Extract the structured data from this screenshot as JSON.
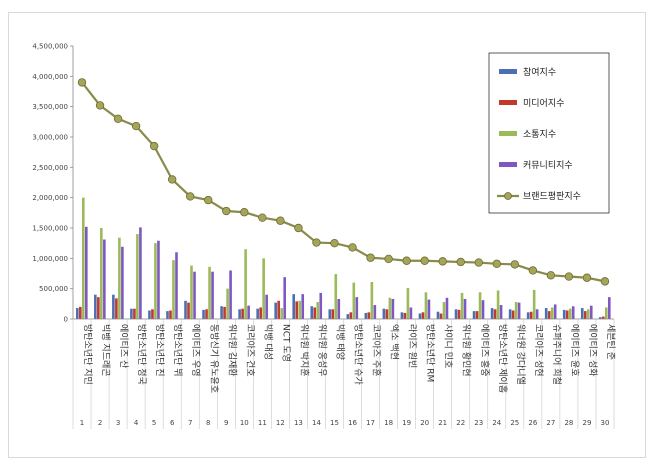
{
  "chart_data": {
    "type": "bar",
    "ylim": [
      0,
      4500000
    ],
    "yticks": [
      "0",
      "500,000",
      "1,000,000",
      "1,500,000",
      "2,000,000",
      "2,500,000",
      "3,000,000",
      "3,500,000",
      "4,000,000",
      "4,500,000"
    ],
    "categories": [
      "방탄소년단 지민",
      "빅뱅 지드래곤",
      "에이티즈 산",
      "방탄소년단 정국",
      "방탄소년단 진",
      "방탄소년단 뷔",
      "에이티즈 우영",
      "동방신기 유노윤호",
      "워너원 김재환",
      "코리아즈 건호",
      "빅뱅 대성",
      "NCT 도영",
      "워너원 박지훈",
      "워너원 옹성우",
      "빅뱅 태양",
      "방탄소년단 슈가",
      "코리아즈 주훈",
      "엑소 백현",
      "라이즈 원빈",
      "방탄소년단 RM",
      "샤이니 민호",
      "워너원 황민현",
      "에이티즈 홍중",
      "방탄소년단 제이홉",
      "워너원 강다니엘",
      "코리아즈 성현",
      "슈퍼주니어 희철",
      "에이티즈 윤호",
      "에이티즈 성화",
      "세븐틴 준"
    ],
    "numbers": [
      "1",
      "2",
      "3",
      "4",
      "5",
      "6",
      "7",
      "8",
      "9",
      "10",
      "11",
      "12",
      "13",
      "14",
      "15",
      "16",
      "17",
      "18",
      "19",
      "20",
      "21",
      "22",
      "23",
      "24",
      "25",
      "26",
      "27",
      "28",
      "29",
      "30"
    ],
    "series": [
      {
        "name": "참여지수",
        "color": "#4a6fb5",
        "values": [
          180000,
          400000,
          400000,
          170000,
          140000,
          130000,
          300000,
          150000,
          210000,
          160000,
          170000,
          270000,
          410000,
          210000,
          160000,
          80000,
          100000,
          170000,
          110000,
          90000,
          120000,
          160000,
          130000,
          180000,
          160000,
          110000,
          180000,
          150000,
          180000,
          30000
        ]
      },
      {
        "name": "미디어지수",
        "color": "#c0392b",
        "values": [
          200000,
          360000,
          340000,
          170000,
          160000,
          140000,
          270000,
          160000,
          200000,
          170000,
          190000,
          300000,
          290000,
          190000,
          160000,
          110000,
          110000,
          160000,
          100000,
          110000,
          90000,
          150000,
          130000,
          160000,
          140000,
          120000,
          130000,
          140000,
          130000,
          40000
        ]
      },
      {
        "name": "소통지수",
        "color": "#9bbb59",
        "values": [
          2000000,
          1500000,
          1340000,
          1400000,
          1250000,
          970000,
          880000,
          860000,
          500000,
          1150000,
          1000000,
          180000,
          300000,
          280000,
          740000,
          600000,
          610000,
          350000,
          510000,
          440000,
          280000,
          430000,
          440000,
          470000,
          280000,
          480000,
          190000,
          170000,
          160000,
          190000
        ]
      },
      {
        "name": "커뮤니티지수",
        "color": "#7e57c2",
        "values": [
          1520000,
          1310000,
          1190000,
          1510000,
          1290000,
          1100000,
          780000,
          780000,
          800000,
          220000,
          400000,
          690000,
          410000,
          430000,
          330000,
          360000,
          230000,
          330000,
          190000,
          320000,
          350000,
          330000,
          310000,
          230000,
          270000,
          160000,
          240000,
          210000,
          220000,
          360000
        ]
      }
    ],
    "line": {
      "name": "브랜드평판지수",
      "color": "#8a8a4a",
      "values": [
        3900000,
        3520000,
        3300000,
        3180000,
        2850000,
        2300000,
        2020000,
        1960000,
        1780000,
        1760000,
        1670000,
        1620000,
        1500000,
        1260000,
        1250000,
        1180000,
        1010000,
        990000,
        960000,
        960000,
        950000,
        940000,
        930000,
        910000,
        900000,
        800000,
        720000,
        700000,
        680000,
        620000
      ]
    },
    "legend_position": "right-inside",
    "grid": false
  }
}
